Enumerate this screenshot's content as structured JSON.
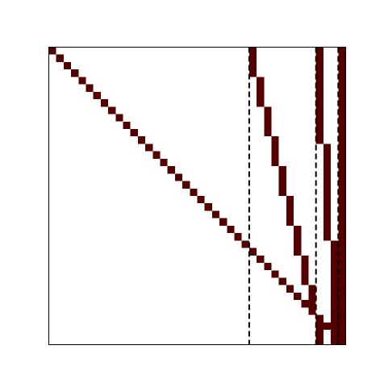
{
  "chart_data": {
    "type": "heatmap",
    "title": "",
    "xlabel": "",
    "ylabel": "",
    "n_rows": 40,
    "n_cols": 40,
    "xlim": [
      0,
      40
    ],
    "ylim": [
      40,
      0
    ],
    "fill_color": "#550000",
    "background_color": "#ffffff",
    "cells": [
      {
        "row": 0,
        "col": 0
      },
      {
        "row": 1,
        "col": 1
      },
      {
        "row": 2,
        "col": 2
      },
      {
        "row": 3,
        "col": 3
      },
      {
        "row": 4,
        "col": 4
      },
      {
        "row": 5,
        "col": 5
      },
      {
        "row": 6,
        "col": 6
      },
      {
        "row": 7,
        "col": 7
      },
      {
        "row": 8,
        "col": 8
      },
      {
        "row": 9,
        "col": 9
      },
      {
        "row": 10,
        "col": 10
      },
      {
        "row": 11,
        "col": 11
      },
      {
        "row": 12,
        "col": 12
      },
      {
        "row": 13,
        "col": 13
      },
      {
        "row": 14,
        "col": 14
      },
      {
        "row": 15,
        "col": 15
      },
      {
        "row": 16,
        "col": 16
      },
      {
        "row": 17,
        "col": 17
      },
      {
        "row": 18,
        "col": 18
      },
      {
        "row": 19,
        "col": 19
      },
      {
        "row": 20,
        "col": 20
      },
      {
        "row": 21,
        "col": 21
      },
      {
        "row": 22,
        "col": 22
      },
      {
        "row": 23,
        "col": 23
      },
      {
        "row": 24,
        "col": 24
      },
      {
        "row": 25,
        "col": 25
      },
      {
        "row": 26,
        "col": 26
      },
      {
        "row": 27,
        "col": 27
      },
      {
        "row": 28,
        "col": 28
      },
      {
        "row": 29,
        "col": 29
      },
      {
        "row": 30,
        "col": 30
      },
      {
        "row": 31,
        "col": 31
      },
      {
        "row": 32,
        "col": 32
      },
      {
        "row": 33,
        "col": 33
      },
      {
        "row": 34,
        "col": 34
      },
      {
        "row": 35,
        "col": 35
      },
      {
        "row": 36,
        "col": 36
      },
      {
        "row": 37,
        "col": 37
      },
      {
        "row": 38,
        "col": 38
      },
      {
        "row": 39,
        "col": 39
      }
    ],
    "vertical_segments": [
      {
        "col": 27,
        "row_start": 0,
        "row_end": 4
      },
      {
        "col": 28,
        "row_start": 4,
        "row_end": 8
      },
      {
        "col": 29,
        "row_start": 8,
        "row_end": 12
      },
      {
        "col": 30,
        "row_start": 12,
        "row_end": 16
      },
      {
        "col": 31,
        "row_start": 16,
        "row_end": 20
      },
      {
        "col": 32,
        "row_start": 20,
        "row_end": 24
      },
      {
        "col": 33,
        "row_start": 24,
        "row_end": 28
      },
      {
        "col": 34,
        "row_start": 28,
        "row_end": 32
      },
      {
        "col": 35,
        "row_start": 32,
        "row_end": 36
      },
      {
        "col": 36,
        "row_start": 36,
        "row_end": 40
      },
      {
        "col": 36,
        "row_start": 0,
        "row_end": 13
      },
      {
        "col": 37,
        "row_start": 13,
        "row_end": 26
      },
      {
        "col": 38,
        "row_start": 26,
        "row_end": 40
      },
      {
        "col": 39,
        "row_start": 0,
        "row_end": 40
      }
    ],
    "dividers": [
      {
        "x": 27,
        "style": "dashed"
      },
      {
        "x": 36,
        "style": "dashed"
      },
      {
        "x": 39,
        "style": "dashed"
      }
    ]
  }
}
